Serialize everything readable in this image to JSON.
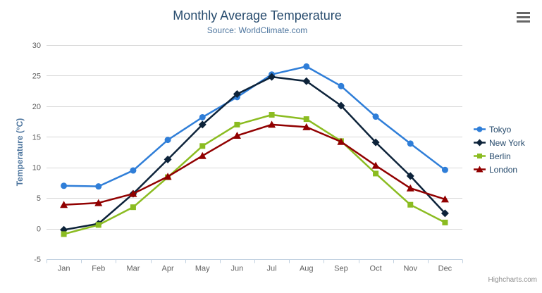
{
  "chart": {
    "credit": "Highcharts.com",
    "export_menu_icon": "hamburger"
  },
  "chart_data": {
    "type": "line",
    "title": "Monthly Average Temperature",
    "subtitle": "Source: WorldClimate.com",
    "xlabel": "",
    "ylabel": "Temperature (°C)",
    "categories": [
      "Jan",
      "Feb",
      "Mar",
      "Apr",
      "May",
      "Jun",
      "Jul",
      "Aug",
      "Sep",
      "Oct",
      "Nov",
      "Dec"
    ],
    "ylim": [
      -5,
      30
    ],
    "y_tick_interval": 5,
    "y_ticks": [
      -5,
      0,
      5,
      10,
      15,
      20,
      25,
      30
    ],
    "grid": true,
    "legend_position": "right",
    "series": [
      {
        "name": "Tokyo",
        "color": "#2f7ed8",
        "marker": "circle",
        "values": [
          7.0,
          6.9,
          9.5,
          14.5,
          18.2,
          21.5,
          25.2,
          26.5,
          23.3,
          18.3,
          13.9,
          9.6
        ]
      },
      {
        "name": "New York",
        "color": "#0d233a",
        "marker": "diamond",
        "values": [
          -0.2,
          0.8,
          5.7,
          11.3,
          17.0,
          22.0,
          24.8,
          24.1,
          20.1,
          14.1,
          8.6,
          2.5
        ]
      },
      {
        "name": "Berlin",
        "color": "#8bbc21",
        "marker": "square",
        "values": [
          -0.9,
          0.6,
          3.5,
          8.4,
          13.5,
          17.0,
          18.6,
          17.9,
          14.3,
          9.0,
          3.9,
          1.0
        ]
      },
      {
        "name": "London",
        "color": "#910000",
        "marker": "triangle",
        "values": [
          3.9,
          4.2,
          5.7,
          8.5,
          11.9,
          15.2,
          17.0,
          16.6,
          14.2,
          10.3,
          6.6,
          4.8
        ]
      }
    ],
    "colors": {
      "title": "#274b6d",
      "subtitle": "#4d759e",
      "axis_title": "#4d759e",
      "tick_label": "#606060",
      "grid_line": "#d8d8d8",
      "axis_line": "#c0d0e0",
      "legend_text": "#274b6d",
      "credit": "#909090",
      "menu_icon": "#666666"
    }
  }
}
